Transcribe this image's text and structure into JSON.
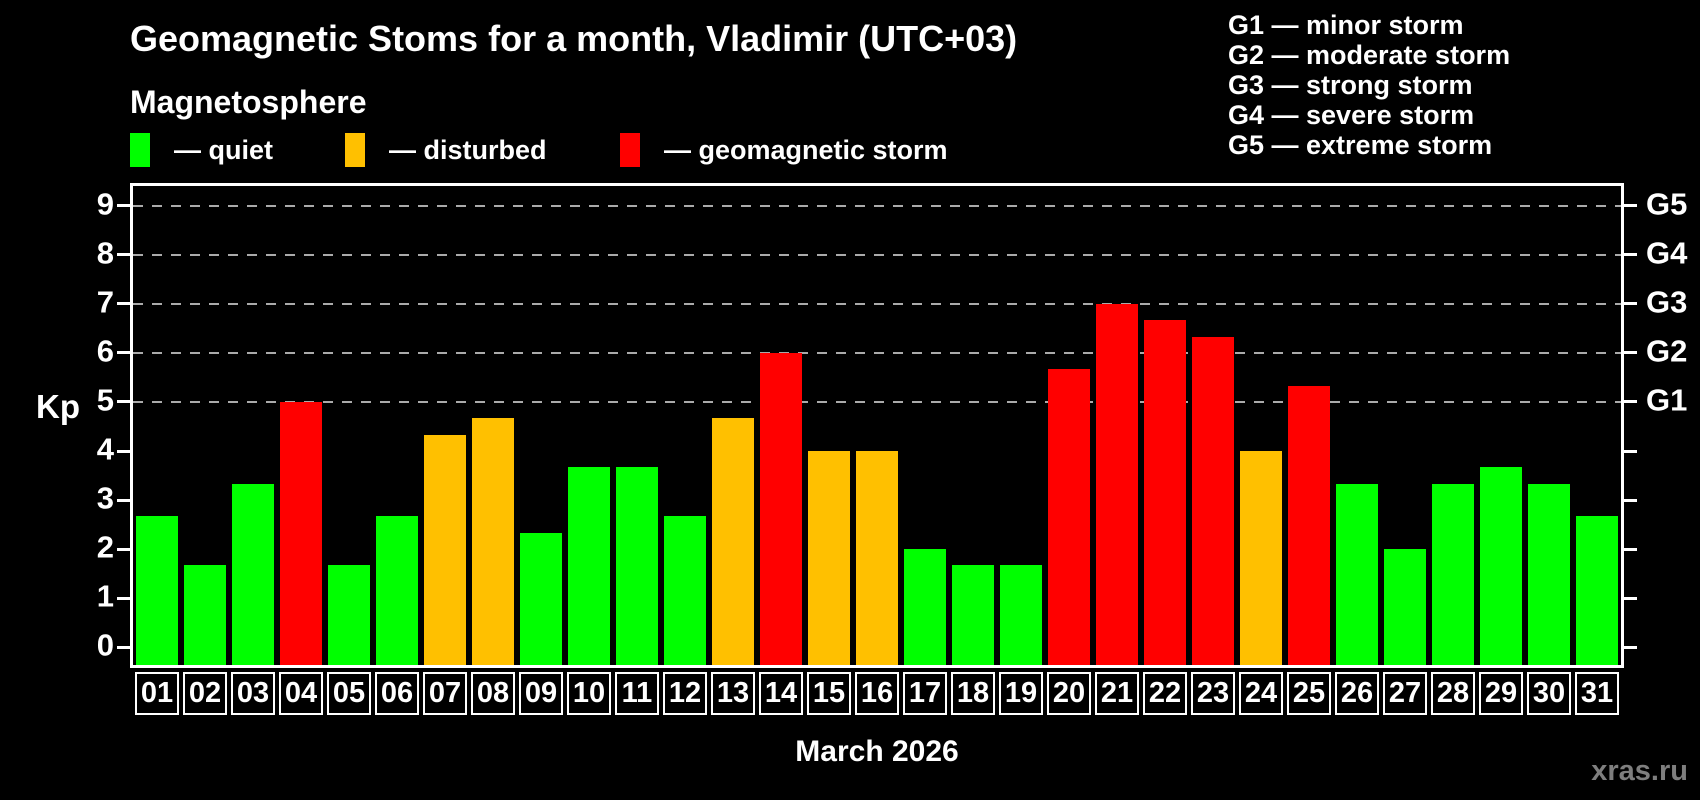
{
  "header": {
    "title": "Geomagnetic Stoms for a month, Vladimir (UTC+03)",
    "subtitle": "Magnetosphere"
  },
  "legend": {
    "items": [
      {
        "status": "quiet",
        "color": "#00ff00",
        "label": "— quiet"
      },
      {
        "status": "disturbed",
        "color": "#ffc000",
        "label": "— disturbed"
      },
      {
        "status": "storm",
        "color": "#ff0000",
        "label": "— geomagnetic storm"
      }
    ]
  },
  "storm_scale_legend": [
    "G1 — minor storm",
    "G2 — moderate storm",
    "G3 — strong storm",
    "G4 — severe storm",
    "G5 — extreme storm"
  ],
  "chart_data": {
    "type": "bar",
    "title": "Geomagnetic Stoms for a month, Vladimir (UTC+03)",
    "subtitle": "Magnetosphere",
    "xlabel": "March 2026",
    "ylabel": "Kp",
    "ylim": [
      0,
      9
    ],
    "y_ticks": [
      0,
      1,
      2,
      3,
      4,
      5,
      6,
      7,
      8,
      9
    ],
    "gridlines_at_kp": [
      5,
      6,
      7,
      8,
      9
    ],
    "grid": true,
    "right_axis_labels": [
      {
        "label": "G1",
        "kp": 5
      },
      {
        "label": "G2",
        "kp": 6
      },
      {
        "label": "G3",
        "kp": 7
      },
      {
        "label": "G4",
        "kp": 8
      },
      {
        "label": "G5",
        "kp": 9
      }
    ],
    "categories": [
      "01",
      "02",
      "03",
      "04",
      "05",
      "06",
      "07",
      "08",
      "09",
      "10",
      "11",
      "12",
      "13",
      "14",
      "15",
      "16",
      "17",
      "18",
      "19",
      "20",
      "21",
      "22",
      "23",
      "24",
      "25",
      "26",
      "27",
      "28",
      "29",
      "30",
      "31"
    ],
    "values": [
      2.67,
      1.67,
      3.33,
      5.0,
      1.67,
      2.67,
      4.33,
      4.67,
      2.33,
      3.67,
      3.67,
      2.67,
      4.67,
      6.0,
      4.0,
      4.0,
      2.0,
      1.67,
      1.67,
      5.67,
      7.0,
      6.67,
      6.33,
      4.0,
      5.33,
      3.33,
      2.0,
      3.33,
      3.67,
      3.33,
      2.67
    ],
    "statuses": [
      "quiet",
      "quiet",
      "quiet",
      "storm",
      "quiet",
      "quiet",
      "disturbed",
      "disturbed",
      "quiet",
      "quiet",
      "quiet",
      "quiet",
      "disturbed",
      "storm",
      "disturbed",
      "disturbed",
      "quiet",
      "quiet",
      "quiet",
      "storm",
      "storm",
      "storm",
      "storm",
      "disturbed",
      "storm",
      "quiet",
      "quiet",
      "quiet",
      "quiet",
      "quiet",
      "quiet"
    ],
    "status_colors": {
      "quiet": "#00ff00",
      "disturbed": "#ffc000",
      "storm": "#ff0000"
    }
  },
  "footer": {
    "axis_title": "March 2026",
    "watermark": "xras.ru"
  }
}
